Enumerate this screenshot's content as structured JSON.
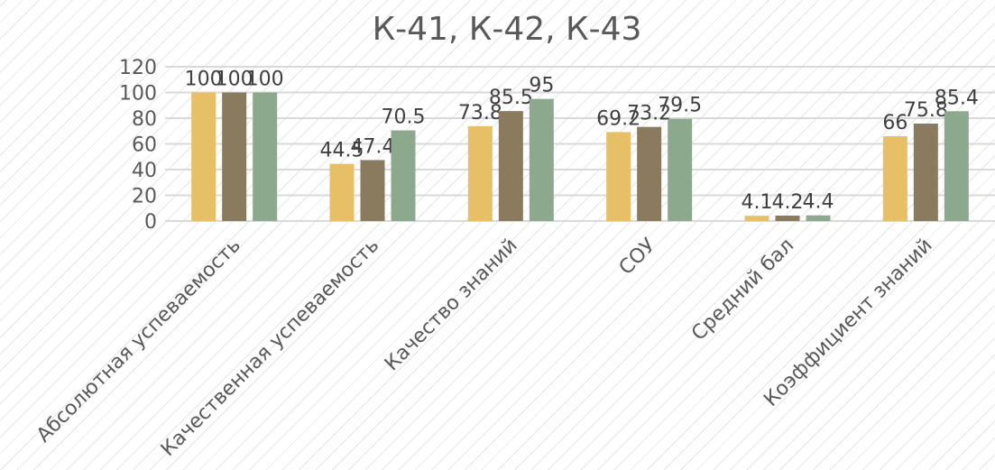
{
  "chart_data": {
    "type": "bar",
    "title": "К-41, К-42, К-43",
    "categories": [
      "Абсолютная успеваемость",
      "Качественная успеваемость",
      "Качество знаний",
      "СОУ",
      "Средний бал",
      "Коэффициент знаний"
    ],
    "series": [
      {
        "values": [
          100,
          44.5,
          73.8,
          69.2,
          4.1,
          66
        ],
        "color": "#e6bf67"
      },
      {
        "values": [
          100,
          47.4,
          85.5,
          73.2,
          4.2,
          75.8
        ],
        "color": "#8a7a5e"
      },
      {
        "values": [
          100,
          70.5,
          95,
          79.5,
          4.4,
          85.4
        ],
        "color": "#8da98d"
      }
    ],
    "ylim": [
      0,
      120
    ],
    "yticks": [
      0,
      20,
      40,
      60,
      80,
      100,
      120
    ],
    "grid": true,
    "legend": "none",
    "data_labels": true
  }
}
